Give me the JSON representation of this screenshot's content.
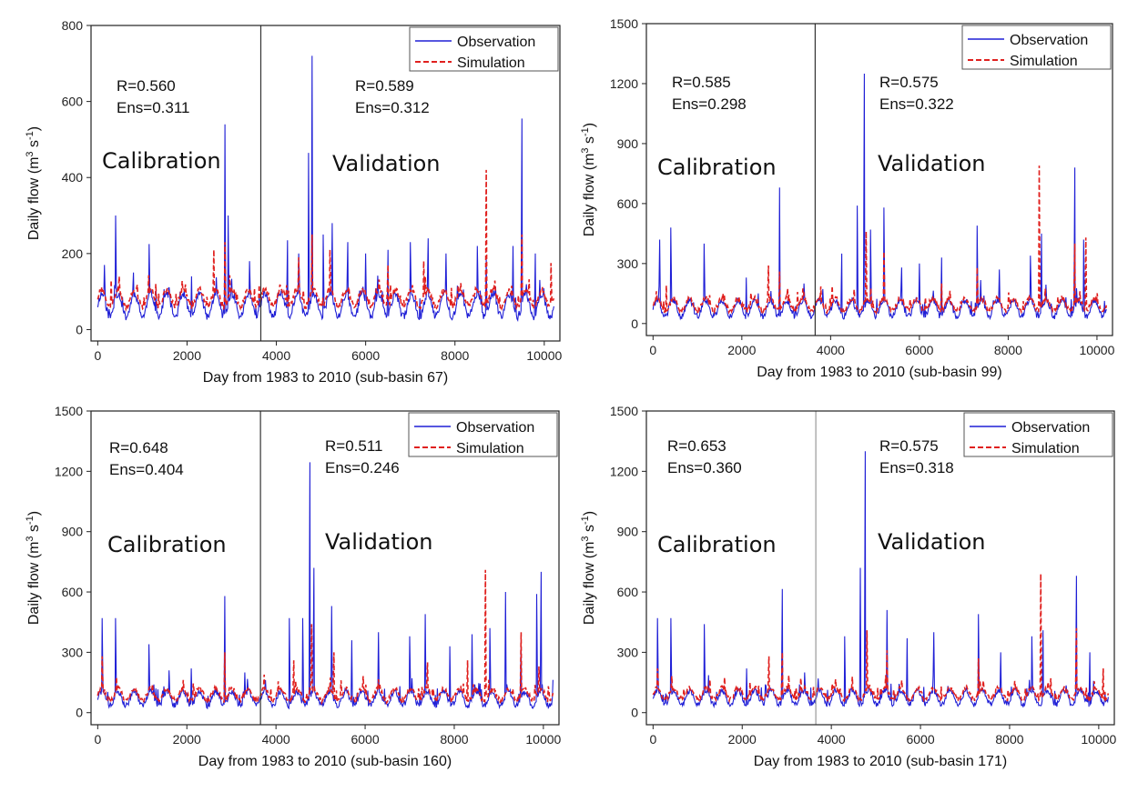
{
  "chart_data": [
    {
      "type": "line",
      "xlabel": "Day from 1983 to 2010 (sub-basin 67)",
      "ylabel": "Daily flow (m3 s-1)",
      "ylabel_main": "Daily flow (m",
      "ylabel_sup1": "3",
      "ylabel_mid": " s",
      "ylabel_sup2": "-1",
      "ylabel_end": ")",
      "xlim": [
        -150,
        10350
      ],
      "ylim": [
        -30,
        800
      ],
      "xticks": [
        0,
        2000,
        4000,
        6000,
        8000,
        10000
      ],
      "xtick_labels": [
        "0",
        "2000",
        "4000",
        "6000",
        "8000",
        "10000"
      ],
      "yticks": [
        0,
        200,
        400,
        600,
        800
      ],
      "ytick_labels": [
        "0",
        "200",
        "400",
        "600",
        "800"
      ],
      "divider_day": 3652,
      "legend": {
        "position": "top-right",
        "entries": [
          "Observation",
          "Simulation"
        ]
      },
      "stats": [
        {
          "r": "R=0.560",
          "ens": "Ens=0.311"
        },
        {
          "r": "R=0.589",
          "ens": "Ens=0.312"
        }
      ],
      "phase_labels": [
        "Calibration",
        "Validation"
      ],
      "series": [
        {
          "name": "Observation",
          "color": "#1f1fd6",
          "style": "solid",
          "base": 60,
          "amp": 30,
          "noise": 20,
          "seed": 11,
          "peaks": [
            [
              150,
              170
            ],
            [
              400,
              300
            ],
            [
              800,
              150
            ],
            [
              1150,
              225
            ],
            [
              1600,
              110
            ],
            [
              2100,
              140
            ],
            [
              2850,
              540
            ],
            [
              2920,
              300
            ],
            [
              3400,
              180
            ],
            [
              4250,
              235
            ],
            [
              4500,
              200
            ],
            [
              4720,
              465
            ],
            [
              4800,
              720
            ],
            [
              5050,
              250
            ],
            [
              5250,
              280
            ],
            [
              5600,
              230
            ],
            [
              6000,
              200
            ],
            [
              6500,
              210
            ],
            [
              7000,
              230
            ],
            [
              7400,
              240
            ],
            [
              7800,
              200
            ],
            [
              8500,
              220
            ],
            [
              8700,
              190
            ],
            [
              9300,
              220
            ],
            [
              9500,
              555
            ],
            [
              9800,
              200
            ]
          ]
        },
        {
          "name": "Simulation",
          "color": "#e0201e",
          "style": "dashed",
          "base": 80,
          "amp": 22,
          "noise": 15,
          "seed": 27,
          "peaks": [
            [
              300,
              130
            ],
            [
              1300,
              120
            ],
            [
              2600,
              210
            ],
            [
              2850,
              230
            ],
            [
              4500,
              190
            ],
            [
              4800,
              250
            ],
            [
              5200,
              210
            ],
            [
              6500,
              170
            ],
            [
              7300,
              180
            ],
            [
              8700,
              420
            ],
            [
              9500,
              250
            ],
            [
              10150,
              175
            ]
          ]
        }
      ]
    },
    {
      "type": "line",
      "xlabel": "Day from 1983 to 2010 (sub-basin 99)",
      "ylabel": "Daily flow (m3 s-1)",
      "ylabel_main": "Daily flow (m",
      "ylabel_sup1": "3",
      "ylabel_mid": " s",
      "ylabel_sup2": "-1",
      "ylabel_end": ")",
      "xlim": [
        -150,
        10350
      ],
      "ylim": [
        -60,
        1500
      ],
      "xticks": [
        0,
        2000,
        4000,
        6000,
        8000,
        10000
      ],
      "xtick_labels": [
        "0",
        "2000",
        "4000",
        "6000",
        "8000",
        "10000"
      ],
      "yticks": [
        0,
        300,
        600,
        900,
        1200,
        1500
      ],
      "ytick_labels": [
        "0",
        "300",
        "600",
        "900",
        "1200",
        "1500"
      ],
      "divider_day": 3652,
      "legend": {
        "position": "top-right",
        "entries": [
          "Observation",
          "Simulation"
        ]
      },
      "stats": [
        {
          "r": "R=0.585",
          "ens": "Ens=0.298"
        },
        {
          "r": "R=0.575",
          "ens": "Ens=0.322"
        }
      ],
      "phase_labels": [
        "Calibration",
        "Validation"
      ],
      "series": [
        {
          "name": "Observation",
          "color": "#1f1fd6",
          "style": "solid",
          "base": 70,
          "amp": 40,
          "noise": 30,
          "seed": 41,
          "peaks": [
            [
              150,
              420
            ],
            [
              400,
              480
            ],
            [
              1150,
              400
            ],
            [
              2100,
              230
            ],
            [
              2850,
              680
            ],
            [
              3400,
              200
            ],
            [
              4250,
              350
            ],
            [
              4600,
              590
            ],
            [
              4760,
              1250
            ],
            [
              4900,
              470
            ],
            [
              5200,
              580
            ],
            [
              5600,
              280
            ],
            [
              6000,
              300
            ],
            [
              6500,
              330
            ],
            [
              7300,
              490
            ],
            [
              7800,
              270
            ],
            [
              8500,
              340
            ],
            [
              8750,
              450
            ],
            [
              9500,
              780
            ],
            [
              9700,
              420
            ]
          ]
        },
        {
          "name": "Simulation",
          "color": "#e0201e",
          "style": "dashed",
          "base": 90,
          "amp": 30,
          "noise": 25,
          "seed": 53,
          "peaks": [
            [
              300,
              190
            ],
            [
              2600,
              290
            ],
            [
              2850,
              260
            ],
            [
              4800,
              460
            ],
            [
              5200,
              360
            ],
            [
              6500,
              200
            ],
            [
              7300,
              280
            ],
            [
              8700,
              790
            ],
            [
              9500,
              400
            ],
            [
              9750,
              430
            ]
          ]
        }
      ]
    },
    {
      "type": "line",
      "xlabel": "Day from 1983 to 2010 (sub-basin 160)",
      "ylabel": "Daily flow (m3 s-1)",
      "ylabel_main": "Daily flow (m",
      "ylabel_sup1": "3",
      "ylabel_mid": " s",
      "ylabel_sup2": "-1",
      "ylabel_end": ")",
      "xlim": [
        -150,
        10350
      ],
      "ylim": [
        -60,
        1500
      ],
      "xticks": [
        0,
        2000,
        4000,
        6000,
        8000,
        10000
      ],
      "xtick_labels": [
        "0",
        "2000",
        "4000",
        "6000",
        "8000",
        "10000"
      ],
      "yticks": [
        0,
        300,
        600,
        900,
        1200,
        1500
      ],
      "ytick_labels": [
        "0",
        "300",
        "600",
        "900",
        "1200",
        "1500"
      ],
      "divider_day": 3652,
      "legend": {
        "position": "top-right",
        "entries": [
          "Observation",
          "Simulation"
        ]
      },
      "stats": [
        {
          "r": "R=0.648",
          "ens": "Ens=0.404"
        },
        {
          "r": "R=0.511",
          "ens": "Ens=0.246"
        }
      ],
      "phase_labels": [
        "Calibration",
        "Validation"
      ],
      "series": [
        {
          "name": "Observation",
          "color": "#1f1fd6",
          "style": "solid",
          "base": 65,
          "amp": 35,
          "noise": 30,
          "seed": 71,
          "peaks": [
            [
              100,
              470
            ],
            [
              400,
              470
            ],
            [
              1150,
              340
            ],
            [
              1600,
              210
            ],
            [
              2100,
              220
            ],
            [
              2850,
              580
            ],
            [
              3300,
              200
            ],
            [
              4300,
              470
            ],
            [
              4600,
              470
            ],
            [
              4760,
              1245
            ],
            [
              4850,
              720
            ],
            [
              5250,
              530
            ],
            [
              5700,
              360
            ],
            [
              6300,
              400
            ],
            [
              7000,
              380
            ],
            [
              7350,
              490
            ],
            [
              7900,
              330
            ],
            [
              8400,
              390
            ],
            [
              8800,
              420
            ],
            [
              9150,
              600
            ],
            [
              9500,
              360
            ],
            [
              9850,
              590
            ],
            [
              9950,
              700
            ]
          ]
        },
        {
          "name": "Simulation",
          "color": "#e0201e",
          "style": "dashed",
          "base": 85,
          "amp": 30,
          "noise": 25,
          "seed": 83,
          "peaks": [
            [
              100,
              280
            ],
            [
              2850,
              300
            ],
            [
              4400,
              260
            ],
            [
              4800,
              440
            ],
            [
              5300,
              300
            ],
            [
              7400,
              250
            ],
            [
              8300,
              260
            ],
            [
              8700,
              710
            ],
            [
              9500,
              400
            ],
            [
              9900,
              230
            ]
          ]
        }
      ]
    },
    {
      "type": "line",
      "xlabel": "Day from 1983 to 2010 (sub-basin 171)",
      "ylabel": "Daily flow (m3 s-1)",
      "ylabel_main": "Daily flow (m",
      "ylabel_sup1": "3",
      "ylabel_mid": " s",
      "ylabel_sup2": "-1",
      "ylabel_end": ")",
      "xlim": [
        -150,
        10350
      ],
      "ylim": [
        -60,
        1500
      ],
      "xticks": [
        0,
        2000,
        4000,
        6000,
        8000,
        10000
      ],
      "xtick_labels": [
        "0",
        "2000",
        "4000",
        "6000",
        "8000",
        "10000"
      ],
      "yticks": [
        0,
        300,
        600,
        900,
        1200,
        1500
      ],
      "ytick_labels": [
        "0",
        "300",
        "600",
        "900",
        "1200",
        "1500"
      ],
      "divider_day": 3652,
      "legend": {
        "position": "top-right",
        "entries": [
          "Observation",
          "Simulation"
        ]
      },
      "stats": [
        {
          "r": "R=0.653",
          "ens": "Ens=0.360"
        },
        {
          "r": "R=0.575",
          "ens": "Ens=0.318"
        }
      ],
      "phase_labels": [
        "Calibration",
        "Validation"
      ],
      "series": [
        {
          "name": "Observation",
          "color": "#1f1fd6",
          "style": "solid",
          "base": 70,
          "amp": 35,
          "noise": 28,
          "seed": 91,
          "peaks": [
            [
              100,
              470
            ],
            [
              400,
              470
            ],
            [
              1150,
              440
            ],
            [
              2100,
              220
            ],
            [
              2900,
              615
            ],
            [
              3400,
              200
            ],
            [
              4300,
              380
            ],
            [
              4650,
              720
            ],
            [
              4760,
              1300
            ],
            [
              5250,
              510
            ],
            [
              5700,
              370
            ],
            [
              6300,
              400
            ],
            [
              7300,
              490
            ],
            [
              7800,
              300
            ],
            [
              8500,
              380
            ],
            [
              8750,
              410
            ],
            [
              9500,
              680
            ],
            [
              9800,
              300
            ]
          ]
        },
        {
          "name": "Simulation",
          "color": "#e0201e",
          "style": "dashed",
          "base": 90,
          "amp": 28,
          "noise": 22,
          "seed": 97,
          "peaks": [
            [
              100,
              220
            ],
            [
              2600,
              280
            ],
            [
              2900,
              300
            ],
            [
              4800,
              410
            ],
            [
              5250,
              310
            ],
            [
              7300,
              270
            ],
            [
              8700,
              690
            ],
            [
              9500,
              420
            ],
            [
              10100,
              220
            ]
          ]
        }
      ]
    }
  ]
}
